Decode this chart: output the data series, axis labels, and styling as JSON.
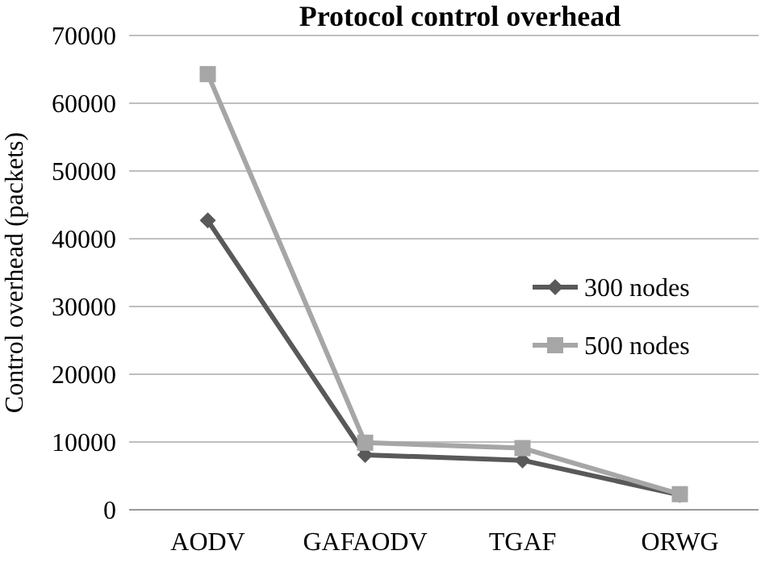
{
  "chart_data": {
    "type": "line",
    "title": "Protocol control overhead",
    "ylabel": "Control overhead  (packets)",
    "categories": [
      "AODV",
      "GAFAODV",
      "TGAF",
      "ORWG"
    ],
    "series": [
      {
        "name": "300 nodes",
        "color": "#595959",
        "values": [
          42700,
          8100,
          7300,
          2200
        ],
        "marker": "diamond"
      },
      {
        "name": "500 nodes",
        "color": "#a6a6a6",
        "values": [
          64300,
          9900,
          9100,
          2300
        ],
        "marker": "square"
      }
    ],
    "ylim": [
      0,
      70000
    ],
    "yticks": [
      0,
      10000,
      20000,
      30000,
      40000,
      50000,
      60000,
      70000
    ],
    "grid": "y",
    "legend": "right",
    "line_style": "solid"
  }
}
